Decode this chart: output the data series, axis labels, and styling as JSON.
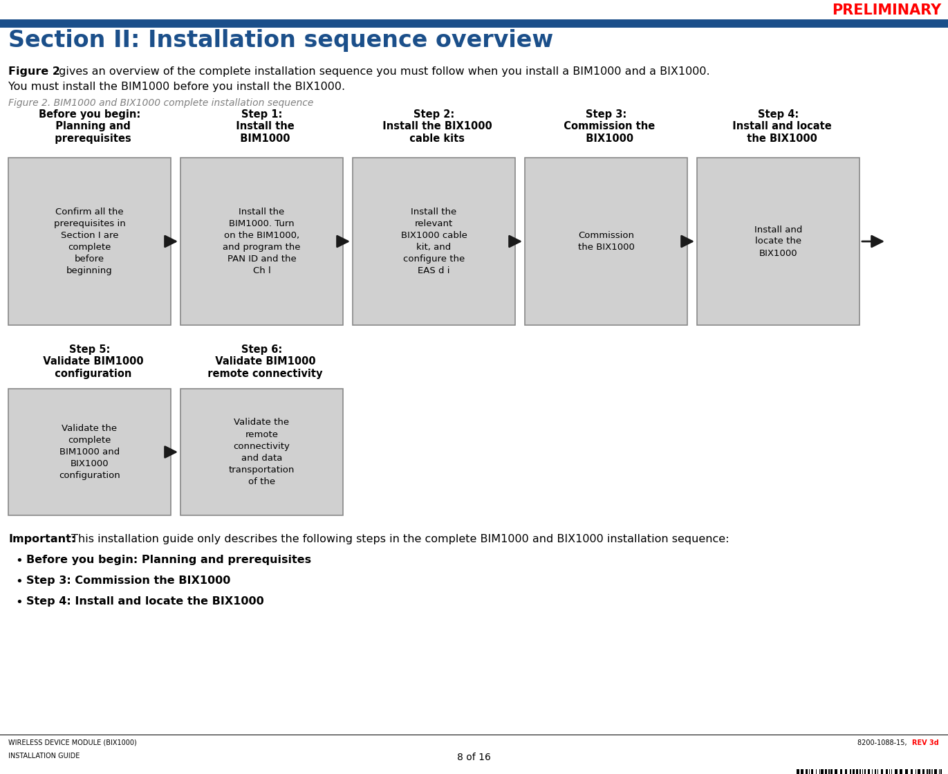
{
  "title_preliminary": "PRELIMINARY",
  "title_preliminary_color": "#FF0000",
  "header_bar_color": "#1B4F8A",
  "header_bar_height": 12,
  "section_title": "Section II: Installation sequence overview",
  "section_title_color": "#1B4F8A",
  "body_text_line1_bold": "Figure 2",
  "body_text_line1_rest": " gives an overview of the complete installation sequence you must follow when you install a BIM1000 and a BIX1000.",
  "body_text_line2": "You must install the BIM1000 before you install the BIX1000.",
  "figure_caption": "Figure 2. BIM1000 and BIX1000 complete installation sequence",
  "figure_caption_color": "#808080",
  "row1_steps": [
    {
      "title": "Before you begin:\n  Planning and\n  prerequisites",
      "box_text": "Confirm all the\nprerequisites in\nSection I are\ncomplete\nbefore\nbeginning"
    },
    {
      "title": "Step 1:\n  Install the\n  BIM1000",
      "box_text": "Install the\nBIM1000. Turn\non the BIM1000,\nand program the\nPAN ID and the\nCh l"
    },
    {
      "title": "Step 2:\n  Install the BIX1000\n  cable kits",
      "box_text": "Install the\nrelevant\nBIX1000 cable\nkit, and\nconfigure the\nEAS d i"
    },
    {
      "title": "Step 3:\n  Commission the\n  BIX1000",
      "box_text": "Commission\nthe BIX1000"
    },
    {
      "title": "Step 4:\n  Install and locate\n  the BIX1000",
      "box_text": "Install and\nlocate the\nBIX1000"
    }
  ],
  "row2_steps": [
    {
      "title": "Step 5:\n  Validate BIM1000\n  configuration",
      "box_text": "Validate the\ncomplete\nBIM1000 and\nBIX1000\nconfiguration"
    },
    {
      "title": "Step 6:\n  Validate BIM1000\n  remote connectivity",
      "box_text": "Validate the\nremote\nconnectivity\nand data\ntransportation\nof the"
    }
  ],
  "important_text_bold": "Important:",
  "important_text_rest": " This installation guide only describes the following steps in the complete BIM1000 and BIX1000 installation sequence:",
  "bullet_points": [
    "Before you begin: Planning and prerequisites",
    "Step 3: Commission the BIX1000",
    "Step 4: Install and locate the BIX1000"
  ],
  "footer_left_top": "WIRELESS DEVICE MODULE (BIX1000)",
  "footer_right_base": "8200-1088-15, ",
  "footer_right_rev": "REV 3d",
  "footer_rev_color": "#FF0000",
  "footer_left_bottom": "INSTALLATION GUIDE",
  "footer_center_bottom": "8 of 16",
  "box_fill_color": "#D0D0D0",
  "box_edge_color": "#888888",
  "arrow_color": "#1A1A1A",
  "text_color": "#000000",
  "background_color": "#FFFFFF"
}
